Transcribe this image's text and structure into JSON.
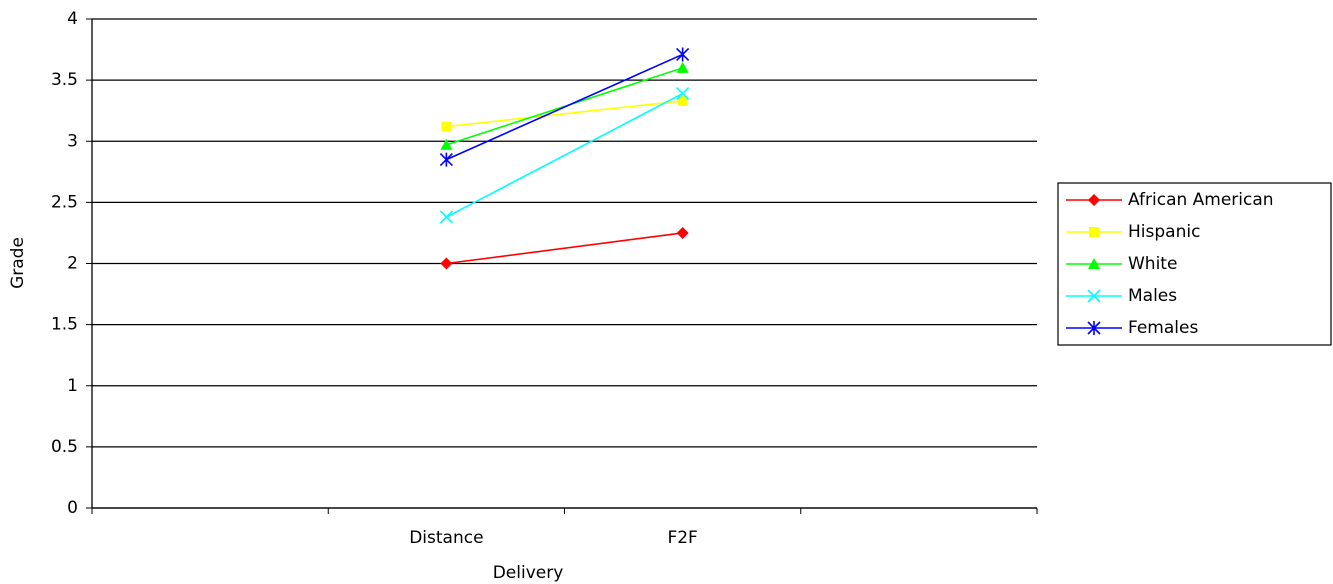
{
  "chart_data": {
    "type": "line",
    "x_label": "Delivery",
    "y_label": "Grade",
    "categories": [
      null,
      "Distance",
      "F2F",
      null
    ],
    "series": [
      {
        "name": "African American",
        "color": "#ff0000",
        "marker": "diamond",
        "values": [
          null,
          2.0,
          2.25,
          null
        ]
      },
      {
        "name": "Hispanic",
        "color": "#ffff00",
        "marker": "square",
        "values": [
          null,
          3.12,
          3.33,
          null
        ]
      },
      {
        "name": "White",
        "color": "#00ff00",
        "marker": "triangle",
        "values": [
          null,
          2.97,
          3.6,
          null
        ]
      },
      {
        "name": "Males",
        "color": "#00ffff",
        "marker": "x",
        "values": [
          null,
          2.38,
          3.39,
          null
        ]
      },
      {
        "name": "Females",
        "color": "#0000ff",
        "marker": "star",
        "values": [
          null,
          2.85,
          3.71,
          null
        ]
      }
    ],
    "ylim": [
      0,
      4
    ],
    "yticks": [
      0,
      0.5,
      1,
      1.5,
      2,
      2.5,
      3,
      3.5,
      4
    ],
    "grid": true,
    "legend": "right"
  }
}
